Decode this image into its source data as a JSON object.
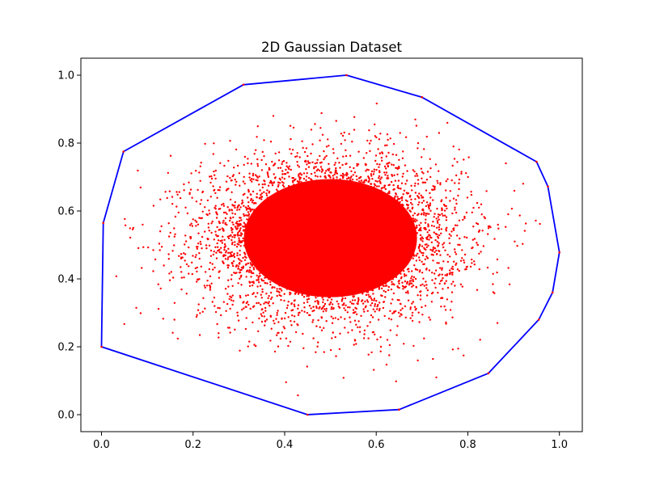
{
  "chart_data": {
    "type": "scatter",
    "title": "2D Gaussian Dataset",
    "xlabel": "",
    "ylabel": "",
    "xlim": [
      -0.045,
      1.05
    ],
    "ylim": [
      -0.05,
      1.05
    ],
    "xticks": [
      0.0,
      0.2,
      0.4,
      0.6,
      0.8,
      1.0
    ],
    "xtick_labels": [
      "0.0",
      "0.2",
      "0.4",
      "0.6",
      "0.8",
      "1.0"
    ],
    "yticks": [
      0.0,
      0.2,
      0.4,
      0.6,
      0.8,
      1.0
    ],
    "ytick_labels": [
      "0.0",
      "0.2",
      "0.4",
      "0.6",
      "0.8",
      "1.0"
    ],
    "grid": false,
    "points": {
      "color": "#ff0000",
      "distribution": "gaussian",
      "mean": [
        0.5,
        0.52
      ],
      "std": [
        0.14,
        0.12
      ]
    },
    "hull": {
      "color": "#0000ff",
      "vertices": [
        [
          0.0,
          0.2
        ],
        [
          0.45,
          0.0
        ],
        [
          0.65,
          0.015
        ],
        [
          0.845,
          0.122
        ],
        [
          0.955,
          0.28
        ],
        [
          0.985,
          0.36
        ],
        [
          1.0,
          0.478
        ],
        [
          0.975,
          0.672
        ],
        [
          0.95,
          0.745
        ],
        [
          0.7,
          0.935
        ],
        [
          0.535,
          1.0
        ],
        [
          0.31,
          0.972
        ],
        [
          0.048,
          0.775
        ],
        [
          0.004,
          0.565
        ]
      ]
    }
  }
}
